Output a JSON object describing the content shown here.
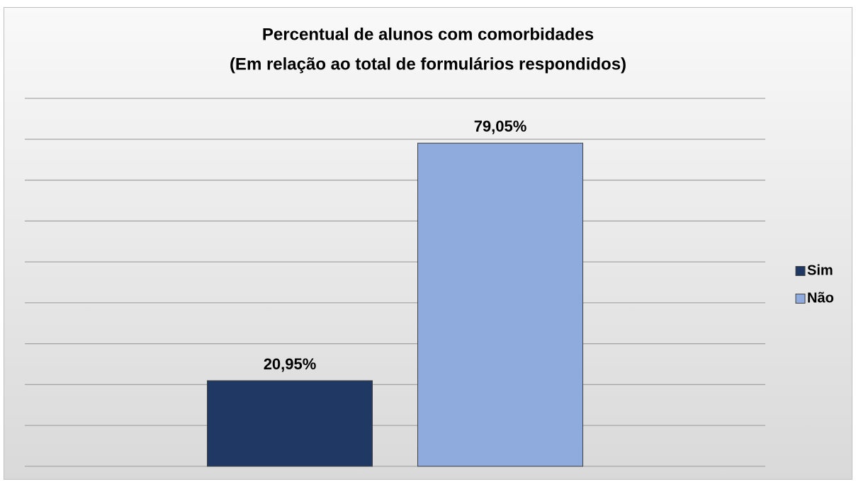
{
  "chart_data": {
    "type": "bar",
    "title": [
      "Percentual de alunos com comorbidades",
      "(Em relação ao total de formulários respondidos)"
    ],
    "categories": [
      null
    ],
    "series": [
      {
        "name": "Sim",
        "color": "#203864",
        "values": [
          20.95
        ],
        "value_labels": [
          "20,95%"
        ]
      },
      {
        "name": "Não",
        "color": "#8faadc",
        "values": [
          79.05
        ],
        "value_labels": [
          "79,05%"
        ]
      }
    ],
    "ylim": [
      0,
      90
    ],
    "yticks": [
      0,
      10,
      20,
      30,
      40,
      50,
      60,
      70,
      80,
      90
    ],
    "grid": true,
    "legend": "right"
  }
}
